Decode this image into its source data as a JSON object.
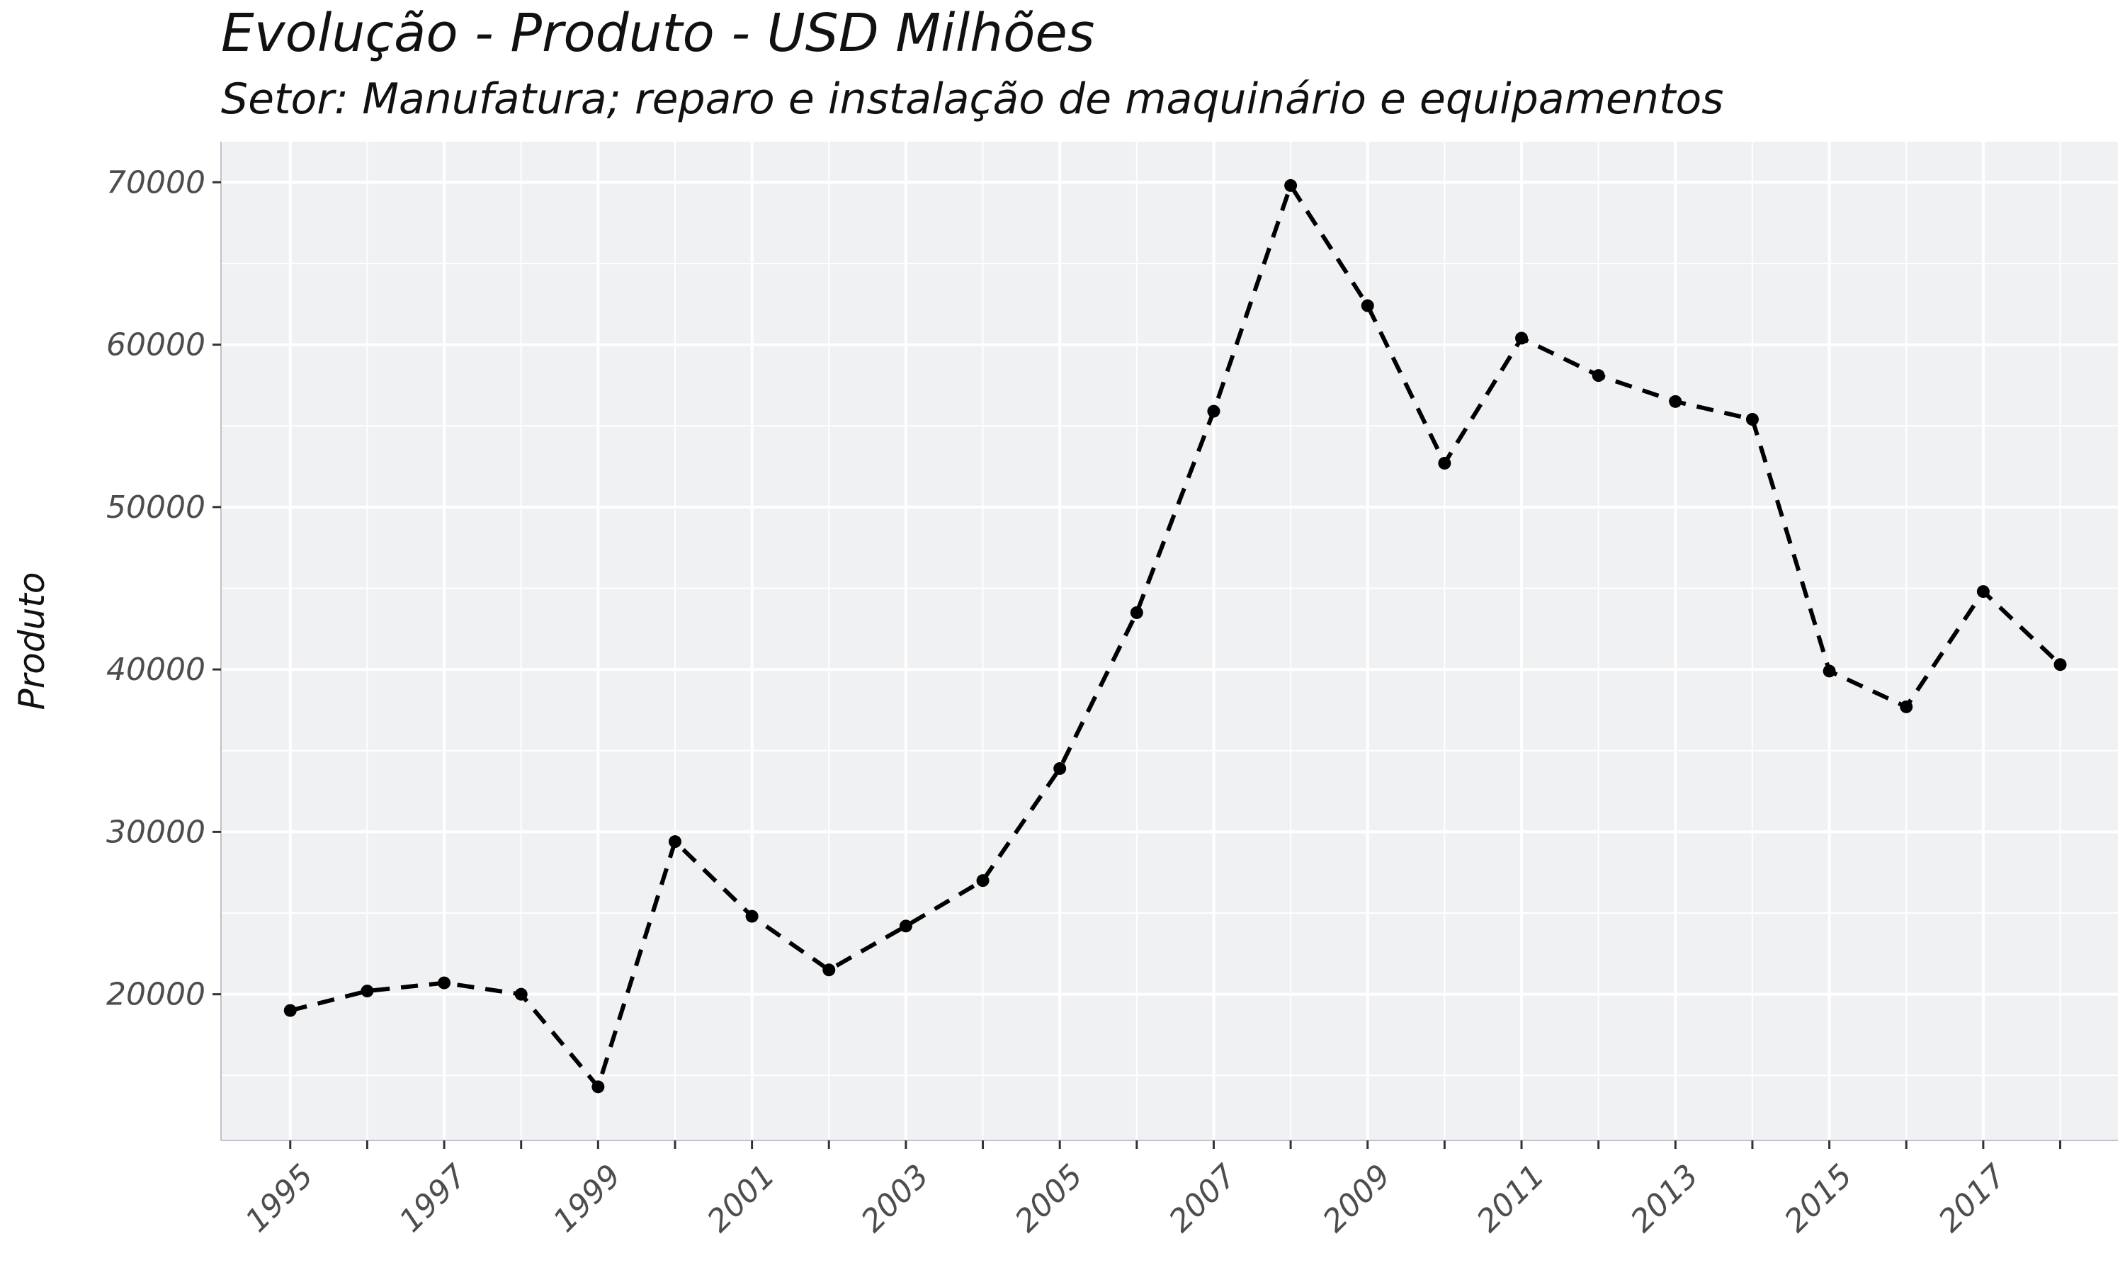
{
  "chart_data": {
    "type": "line",
    "title": "Evolução - Produto - USD Milhões",
    "subtitle": "Setor: Manufatura; reparo e instalação de maquinário e equipamentos",
    "xlabel": "",
    "ylabel": "Produto",
    "x": [
      1995,
      1996,
      1997,
      1998,
      1999,
      2000,
      2001,
      2002,
      2003,
      2004,
      2005,
      2006,
      2007,
      2008,
      2009,
      2010,
      2011,
      2012,
      2013,
      2014,
      2015,
      2016,
      2017,
      2018
    ],
    "series": [
      {
        "values": [
          19000,
          20200,
          20700,
          20000,
          14300,
          29400,
          24800,
          21500,
          24200,
          27000,
          33900,
          43500,
          55900,
          69800,
          62400,
          52700,
          60400,
          58100,
          56500,
          55400,
          39900,
          37700,
          44800,
          40300
        ],
        "line_style": "dashed",
        "markers": true,
        "color": "#000000"
      }
    ],
    "xticks": [
      1995,
      1997,
      1999,
      2001,
      2003,
      2005,
      2007,
      2009,
      2011,
      2013,
      2015,
      2017
    ],
    "xtick_labels": [
      "1995",
      "1997",
      "1999",
      "2001",
      "2003",
      "2005",
      "2007",
      "2009",
      "2011",
      "2013",
      "2015",
      "2017"
    ],
    "yticks": [
      20000,
      30000,
      40000,
      50000,
      60000,
      70000
    ],
    "ytick_labels": [
      "20000",
      "30000",
      "40000",
      "50000",
      "60000",
      "70000"
    ],
    "xlim": [
      1994.1,
      2018.75
    ],
    "ylim": [
      11000,
      72500
    ],
    "grid": true,
    "panel_color": "#f0f1f3",
    "grid_color": "#ffffff"
  }
}
